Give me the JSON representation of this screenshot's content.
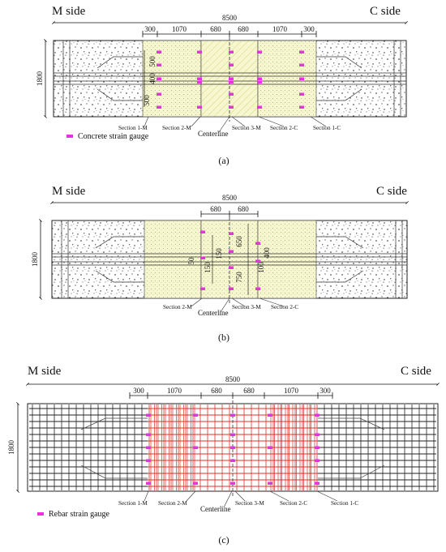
{
  "colors": {
    "concrete_hatch": "#2a2a2a",
    "joint_fill": "#f4f4c8",
    "gauge": "#e633e0",
    "rebar_black": "#222222",
    "rebar_red": "#d9322b",
    "outline": "#222222"
  },
  "panel_a": {
    "m_side": "M side",
    "c_side": "C side",
    "total_length": "8500",
    "width_dim": "1800",
    "segments": [
      "300",
      "1070",
      "680",
      "680",
      "1070",
      "300"
    ],
    "vertical_dims": [
      "500",
      "400",
      "500"
    ],
    "sections": [
      "Section 1-M",
      "Section 2-M",
      "Centerline",
      "Section 3-M",
      "Section 2-C",
      "Section 1-C"
    ],
    "legend": "Concrete strain gauge",
    "caption": "(a)"
  },
  "panel_b": {
    "m_side": "M side",
    "c_side": "C side",
    "total_length": "8500",
    "width_dim": "1800",
    "segments": [
      "680",
      "680"
    ],
    "vertical_dims": [
      "150",
      "650",
      "750",
      "400",
      "100",
      "50",
      "150"
    ],
    "sections": [
      "Section 2-M",
      "Centerline",
      "Section 3-M",
      "Section 2-C"
    ],
    "caption": "(b)"
  },
  "panel_c": {
    "m_side": "M side",
    "c_side": "C side",
    "total_length": "8500",
    "width_dim": "1800",
    "segments": [
      "300",
      "1070",
      "680",
      "680",
      "1070",
      "300"
    ],
    "sections": [
      "Section 1-M",
      "Section 2-M",
      "Centerline",
      "Section 3-M",
      "Section 2-C",
      "Section 1-C"
    ],
    "legend": "Rebar strain gauge",
    "caption": "(c)"
  }
}
